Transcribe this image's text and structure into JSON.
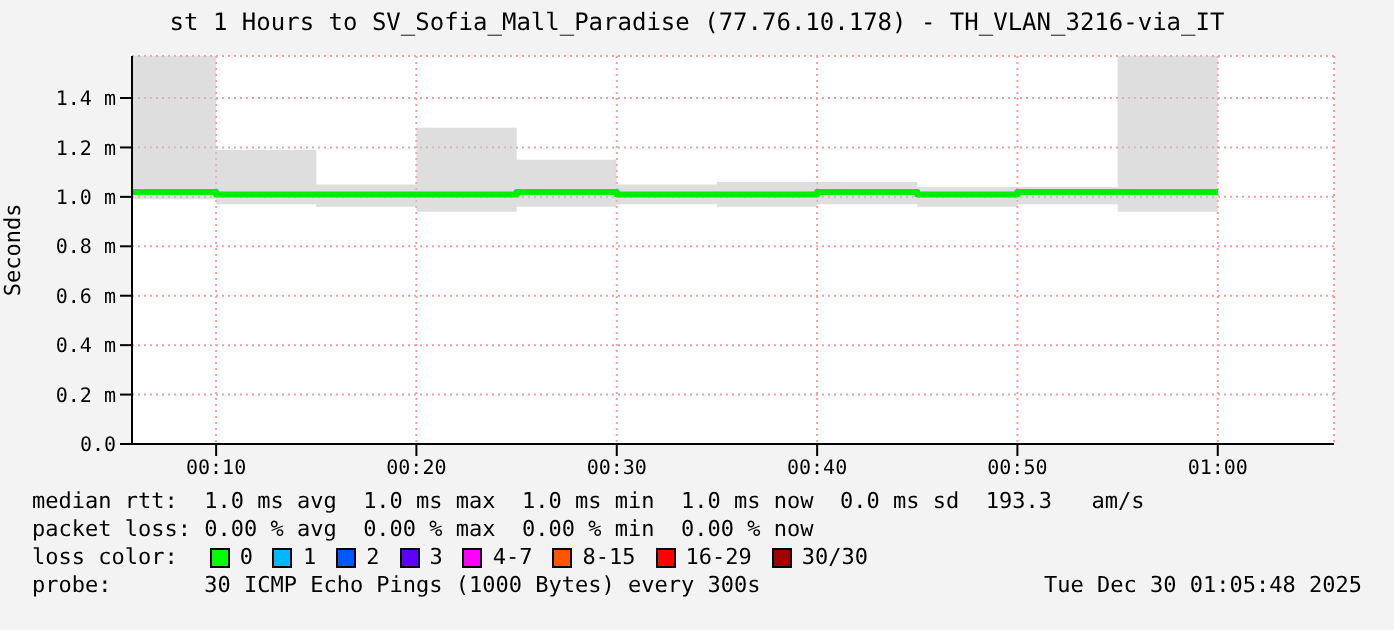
{
  "chart_data": {
    "type": "step",
    "title": "st 1 Hours to SV_Sofia_Mall_Paradise (77.76.10.178) - TH_VLAN_3216-via_IT",
    "ylabel": "Seconds",
    "x": [
      0.0967,
      0.1667,
      0.25,
      0.3333,
      0.4167,
      0.5,
      0.5833,
      0.6667,
      0.75,
      0.8333,
      0.9167,
      1.0
    ],
    "series": [
      {
        "color": "#00ee00",
        "values": [
          1.02,
          1.01,
          1.01,
          1.01,
          1.02,
          1.01,
          1.01,
          1.02,
          1.01,
          1.02,
          1.02,
          1.02
        ],
        "lower": [
          0.99,
          0.97,
          0.96,
          0.94,
          0.96,
          0.97,
          0.96,
          0.97,
          0.96,
          0.97,
          0.94,
          0.94
        ],
        "upper": [
          1.57,
          1.19,
          1.05,
          1.28,
          1.15,
          1.05,
          1.06,
          1.06,
          1.04,
          1.04,
          1.57,
          1.57
        ]
      }
    ],
    "xlim": [
      0.0967,
      1.0967
    ],
    "xticks": [
      {
        "value": 0.1667,
        "label": "00:10"
      },
      {
        "value": 0.3333,
        "label": "00:20"
      },
      {
        "value": 0.5,
        "label": "00:30"
      },
      {
        "value": 0.6667,
        "label": "00:40"
      },
      {
        "value": 0.8333,
        "label": "00:50"
      },
      {
        "value": 1.0,
        "label": "01:00"
      }
    ],
    "ylim": [
      0,
      1.57
    ],
    "yticks": [
      {
        "value": 0,
        "label": "0.0"
      },
      {
        "value": 0.2,
        "label": "0.2 m"
      },
      {
        "value": 0.4,
        "label": "0.4 m"
      },
      {
        "value": 0.6,
        "label": "0.6 m"
      },
      {
        "value": 0.8,
        "label": "0.8 m"
      },
      {
        "value": 1.0,
        "label": "1.0 m"
      },
      {
        "value": 1.2,
        "label": "1.2 m"
      },
      {
        "value": 1.4,
        "label": "1.4 m"
      }
    ],
    "grid": true,
    "legend": false,
    "annotations": [
      "median rtt:  1.0 ms avg  1.0 ms max  1.0 ms min  1.0 ms now  0.0 ms sd  193.3   am/s",
      "packet loss: 0.00 % avg  0.00 % max  0.00 % min  0.00 % now",
      "loss color:",
      "0",
      "1",
      "2",
      "3",
      "4-7",
      "8-15",
      "16-29",
      "30/30",
      "probe:       30 ICMP Echo Pings (1000 Bytes) every 300s",
      "Tue Dec 30 01:05:48 2025"
    ]
  }
}
